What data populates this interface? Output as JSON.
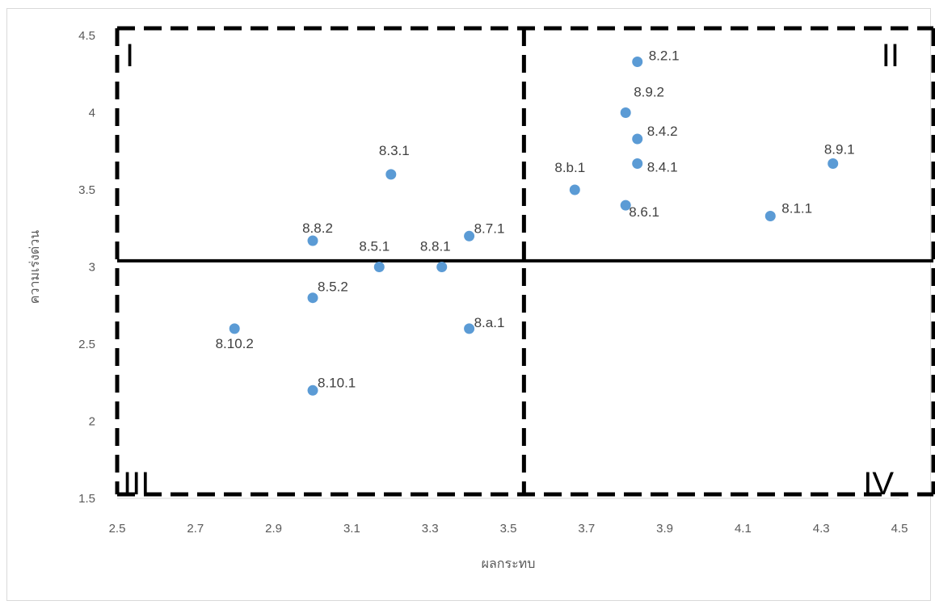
{
  "chart_data": {
    "type": "scatter",
    "title": "",
    "xlabel": "ผลกระทบ",
    "ylabel": "ความเร่งด่วน",
    "xlim": [
      2.5,
      4.5
    ],
    "ylim": [
      1.5,
      4.5
    ],
    "x_ticks": [
      "2.5",
      "2.7",
      "2.9",
      "3.1",
      "3.3",
      "3.5",
      "3.7",
      "3.9",
      "4.1",
      "4.3",
      "4.5"
    ],
    "y_ticks": [
      "1.5",
      "2",
      "2.5",
      "3",
      "3.5",
      "4",
      "4.5"
    ],
    "grid": false,
    "marker_color": "#5b9bd5",
    "points": [
      {
        "label": "8.2.1",
        "x": 3.83,
        "y": 4.33
      },
      {
        "label": "8.9.2",
        "x": 3.8,
        "y": 4.0
      },
      {
        "label": "8.4.2",
        "x": 3.83,
        "y": 3.83
      },
      {
        "label": "8.4.1",
        "x": 3.83,
        "y": 3.67
      },
      {
        "label": "8.9.1",
        "x": 4.33,
        "y": 3.67
      },
      {
        "label": "8.3.1",
        "x": 3.2,
        "y": 3.6
      },
      {
        "label": "8.b.1",
        "x": 3.67,
        "y": 3.5
      },
      {
        "label": "8.6.1",
        "x": 3.8,
        "y": 3.4
      },
      {
        "label": "8.1.1",
        "x": 4.17,
        "y": 3.33
      },
      {
        "label": "8.7.1",
        "x": 3.4,
        "y": 3.2
      },
      {
        "label": "8.8.2",
        "x": 3.0,
        "y": 3.17
      },
      {
        "label": "8.5.1",
        "x": 3.17,
        "y": 3.0
      },
      {
        "label": "8.8.1",
        "x": 3.33,
        "y": 3.0
      },
      {
        "label": "8.5.2",
        "x": 3.0,
        "y": 2.8
      },
      {
        "label": "8.10.2",
        "x": 2.8,
        "y": 2.6
      },
      {
        "label": "8.a.1",
        "x": 3.4,
        "y": 2.6
      },
      {
        "label": "8.10.1",
        "x": 3.0,
        "y": 2.2
      }
    ],
    "quadrant_divider": {
      "x": 3.54,
      "y": 3.04
    },
    "quadrants": [
      {
        "label": "I",
        "position": "top-left"
      },
      {
        "label": "II",
        "position": "top-right"
      },
      {
        "label": "III",
        "position": "bottom-left"
      },
      {
        "label": "IV",
        "position": "bottom-right"
      }
    ]
  }
}
